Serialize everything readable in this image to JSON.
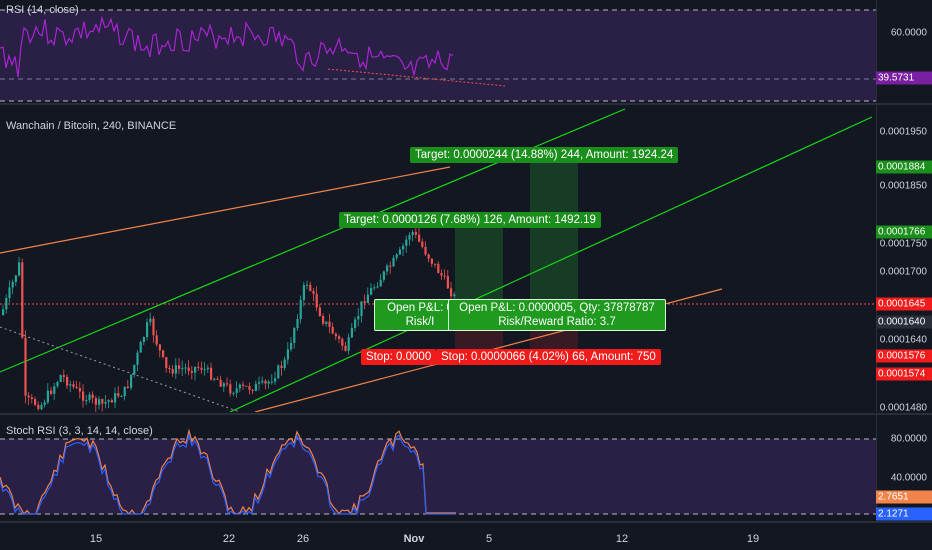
{
  "rsi": {
    "title": "RSI (14, close)",
    "axis_labels": [
      "60.0000"
    ],
    "current_value": "39.5731",
    "badge_color": "#7b1fa2"
  },
  "main": {
    "title": "Wanchain / Bitcoin, 240, BINANCE",
    "axis_labels": [
      "0.0001950",
      "0.0001850",
      "0.0001750",
      "0.0001700",
      "0.0001640",
      "0.0001480"
    ],
    "price_badges": [
      {
        "value": "0.0001884",
        "color": "#1b8f1b"
      },
      {
        "value": "0.0001766",
        "color": "#1b8f1b"
      },
      {
        "value": "0.0001645",
        "color": "#f21b1b"
      },
      {
        "value": "0.0001640",
        "color": "#2a2e39"
      },
      {
        "value": "0.0001576",
        "color": "#f21b1b"
      },
      {
        "value": "0.0001574",
        "color": "#f21b1b"
      }
    ],
    "positions": {
      "target_a": "Target: 0.0000244 (14.88%) 244, Amount: 1924.24",
      "target_b": "Target: 0.0000126 (7.68%) 126, Amount: 1492.19",
      "pnl_small_line1": "Open P&L: 0",
      "pnl_small_line2": "Risk/I",
      "pnl_large_line1": "Open P&L: 0.0000005, Qty: 37878787",
      "pnl_large_line2": "Risk/Reward Ratio: 3.7",
      "stop_a": "Stop: 0.0000",
      "stop_b": "Stop: 0.0000066 (4.02%) 66, Amount: 750"
    },
    "colors": {
      "up": "#26a69a",
      "down": "#ef5350",
      "channel": "#17d617",
      "trend": "#f0844a"
    }
  },
  "stoch": {
    "title": "Stoch RSI (3, 3, 14, 14, close)",
    "axis_labels": [
      "80.0000",
      "40.0000"
    ],
    "k_value": "2.7651",
    "d_value": "2.1271",
    "k_color": "#f0844a",
    "d_color": "#2962ff"
  },
  "time_axis": [
    "15",
    "22",
    "26",
    "Nov",
    "5",
    "12",
    "19"
  ]
}
